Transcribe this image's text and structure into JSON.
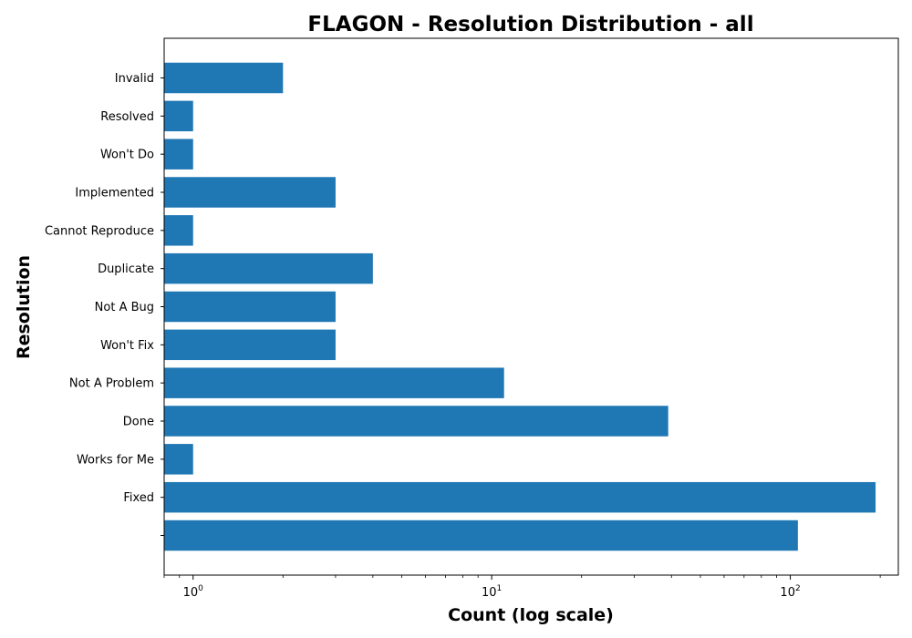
{
  "chart_data": {
    "type": "bar",
    "orientation": "horizontal",
    "title": "FLAGON - Resolution Distribution - all",
    "xlabel": "Count (log scale)",
    "ylabel": "Resolution",
    "x_scale": "log",
    "xlim": [
      0.8,
      230
    ],
    "x_ticks": [
      {
        "value": 1,
        "base": "10",
        "exp": "0"
      },
      {
        "value": 10,
        "base": "10",
        "exp": "1"
      },
      {
        "value": 100,
        "base": "10",
        "exp": "2"
      }
    ],
    "bar_color": "#1f77b4",
    "grid": false,
    "legend": "none",
    "categories": [
      "",
      "Fixed",
      "Works for Me",
      "Done",
      "Not A Problem",
      "Won't Fix",
      "Not A Bug",
      "Duplicate",
      "Cannot Reproduce",
      "Implemented",
      "Won't Do",
      "Resolved",
      "Invalid"
    ],
    "values": [
      106,
      193,
      1,
      39,
      11,
      3,
      3,
      4,
      1,
      3,
      1,
      1,
      2
    ]
  }
}
